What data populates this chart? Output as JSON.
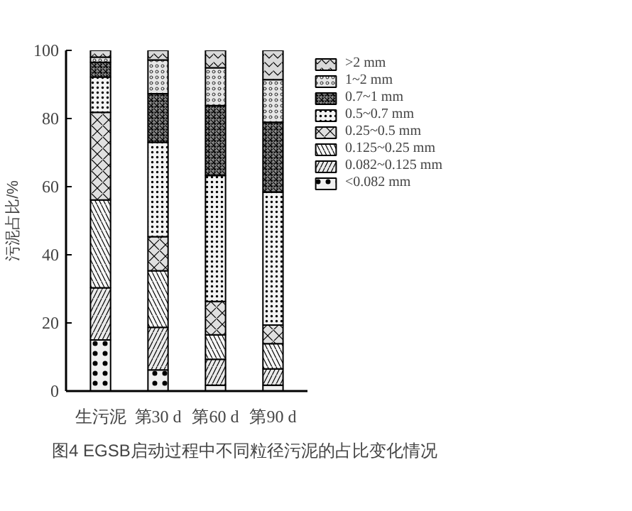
{
  "chart_data": {
    "type": "bar",
    "stacked": true,
    "ylabel": "污泥占比/%",
    "categories": [
      "生污泥",
      "第30 d",
      "第60 d",
      "第90 d"
    ],
    "ylim": [
      0,
      100
    ],
    "yticks": [
      0,
      20,
      40,
      60,
      80,
      100
    ],
    "legend": "right",
    "grid": false,
    "series": [
      {
        "name": "<0.082 mm",
        "color": "#f0f0f0",
        "values": [
          15.0,
          6.2,
          1.7,
          1.7
        ]
      },
      {
        "name": "0.082~0.125 mm",
        "color": "#ebebeb",
        "values": [
          15.3,
          12.5,
          7.6,
          4.8
        ]
      },
      {
        "name": "0.125~0.25 mm",
        "color": "#f6f6f6",
        "values": [
          25.8,
          16.6,
          7.2,
          7.4
        ]
      },
      {
        "name": "0.25~0.5 mm",
        "color": "#e0e0e0",
        "values": [
          25.7,
          10.0,
          9.8,
          5.5
        ]
      },
      {
        "name": "0.5~0.7 mm",
        "color": "#f3f3f3",
        "values": [
          10.4,
          27.7,
          37.0,
          39.0
        ]
      },
      {
        "name": "0.7~1 mm",
        "color": "#8c8c8c",
        "values": [
          4.3,
          14.3,
          20.5,
          20.5
        ]
      },
      {
        "name": "1~2 mm",
        "color": "#e6e6e6",
        "values": [
          1.5,
          9.9,
          11.1,
          12.5
        ]
      },
      {
        "name": ">2 mm",
        "color": "#d9d9d9",
        "values": [
          2.3,
          2.8,
          5.1,
          8.6
        ]
      }
    ],
    "annotations": [
      "图4 EGSB启动过程中不同粒径污泥的占比变化情况"
    ]
  }
}
